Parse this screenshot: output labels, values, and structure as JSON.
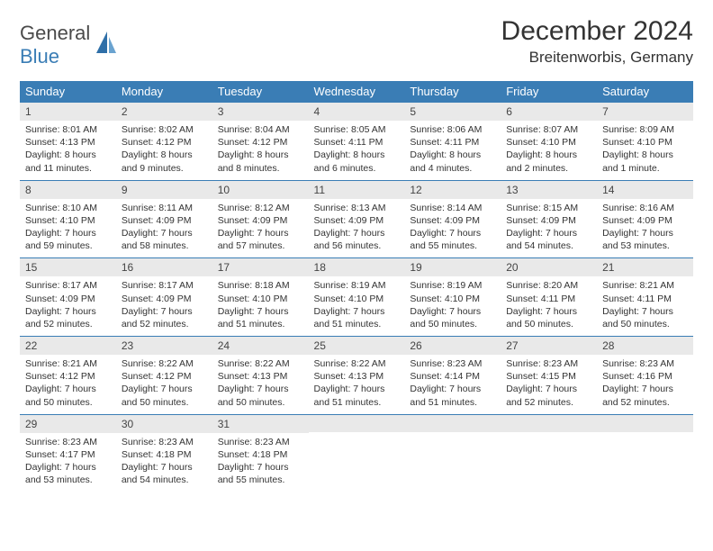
{
  "logo": {
    "part1": "General",
    "part2": "Blue"
  },
  "title": "December 2024",
  "location": "Breitenworbis, Germany",
  "colors": {
    "header_bg": "#3a7db5",
    "daynum_bg": "#e9e9e9",
    "text": "#333333",
    "logo_gray": "#4a4a4a",
    "logo_blue": "#3a7db5"
  },
  "weekdays": [
    "Sunday",
    "Monday",
    "Tuesday",
    "Wednesday",
    "Thursday",
    "Friday",
    "Saturday"
  ],
  "days": [
    {
      "n": "1",
      "sr": "Sunrise: 8:01 AM",
      "ss": "Sunset: 4:13 PM",
      "dl1": "Daylight: 8 hours",
      "dl2": "and 11 minutes."
    },
    {
      "n": "2",
      "sr": "Sunrise: 8:02 AM",
      "ss": "Sunset: 4:12 PM",
      "dl1": "Daylight: 8 hours",
      "dl2": "and 9 minutes."
    },
    {
      "n": "3",
      "sr": "Sunrise: 8:04 AM",
      "ss": "Sunset: 4:12 PM",
      "dl1": "Daylight: 8 hours",
      "dl2": "and 8 minutes."
    },
    {
      "n": "4",
      "sr": "Sunrise: 8:05 AM",
      "ss": "Sunset: 4:11 PM",
      "dl1": "Daylight: 8 hours",
      "dl2": "and 6 minutes."
    },
    {
      "n": "5",
      "sr": "Sunrise: 8:06 AM",
      "ss": "Sunset: 4:11 PM",
      "dl1": "Daylight: 8 hours",
      "dl2": "and 4 minutes."
    },
    {
      "n": "6",
      "sr": "Sunrise: 8:07 AM",
      "ss": "Sunset: 4:10 PM",
      "dl1": "Daylight: 8 hours",
      "dl2": "and 2 minutes."
    },
    {
      "n": "7",
      "sr": "Sunrise: 8:09 AM",
      "ss": "Sunset: 4:10 PM",
      "dl1": "Daylight: 8 hours",
      "dl2": "and 1 minute."
    },
    {
      "n": "8",
      "sr": "Sunrise: 8:10 AM",
      "ss": "Sunset: 4:10 PM",
      "dl1": "Daylight: 7 hours",
      "dl2": "and 59 minutes."
    },
    {
      "n": "9",
      "sr": "Sunrise: 8:11 AM",
      "ss": "Sunset: 4:09 PM",
      "dl1": "Daylight: 7 hours",
      "dl2": "and 58 minutes."
    },
    {
      "n": "10",
      "sr": "Sunrise: 8:12 AM",
      "ss": "Sunset: 4:09 PM",
      "dl1": "Daylight: 7 hours",
      "dl2": "and 57 minutes."
    },
    {
      "n": "11",
      "sr": "Sunrise: 8:13 AM",
      "ss": "Sunset: 4:09 PM",
      "dl1": "Daylight: 7 hours",
      "dl2": "and 56 minutes."
    },
    {
      "n": "12",
      "sr": "Sunrise: 8:14 AM",
      "ss": "Sunset: 4:09 PM",
      "dl1": "Daylight: 7 hours",
      "dl2": "and 55 minutes."
    },
    {
      "n": "13",
      "sr": "Sunrise: 8:15 AM",
      "ss": "Sunset: 4:09 PM",
      "dl1": "Daylight: 7 hours",
      "dl2": "and 54 minutes."
    },
    {
      "n": "14",
      "sr": "Sunrise: 8:16 AM",
      "ss": "Sunset: 4:09 PM",
      "dl1": "Daylight: 7 hours",
      "dl2": "and 53 minutes."
    },
    {
      "n": "15",
      "sr": "Sunrise: 8:17 AM",
      "ss": "Sunset: 4:09 PM",
      "dl1": "Daylight: 7 hours",
      "dl2": "and 52 minutes."
    },
    {
      "n": "16",
      "sr": "Sunrise: 8:17 AM",
      "ss": "Sunset: 4:09 PM",
      "dl1": "Daylight: 7 hours",
      "dl2": "and 52 minutes."
    },
    {
      "n": "17",
      "sr": "Sunrise: 8:18 AM",
      "ss": "Sunset: 4:10 PM",
      "dl1": "Daylight: 7 hours",
      "dl2": "and 51 minutes."
    },
    {
      "n": "18",
      "sr": "Sunrise: 8:19 AM",
      "ss": "Sunset: 4:10 PM",
      "dl1": "Daylight: 7 hours",
      "dl2": "and 51 minutes."
    },
    {
      "n": "19",
      "sr": "Sunrise: 8:19 AM",
      "ss": "Sunset: 4:10 PM",
      "dl1": "Daylight: 7 hours",
      "dl2": "and 50 minutes."
    },
    {
      "n": "20",
      "sr": "Sunrise: 8:20 AM",
      "ss": "Sunset: 4:11 PM",
      "dl1": "Daylight: 7 hours",
      "dl2": "and 50 minutes."
    },
    {
      "n": "21",
      "sr": "Sunrise: 8:21 AM",
      "ss": "Sunset: 4:11 PM",
      "dl1": "Daylight: 7 hours",
      "dl2": "and 50 minutes."
    },
    {
      "n": "22",
      "sr": "Sunrise: 8:21 AM",
      "ss": "Sunset: 4:12 PM",
      "dl1": "Daylight: 7 hours",
      "dl2": "and 50 minutes."
    },
    {
      "n": "23",
      "sr": "Sunrise: 8:22 AM",
      "ss": "Sunset: 4:12 PM",
      "dl1": "Daylight: 7 hours",
      "dl2": "and 50 minutes."
    },
    {
      "n": "24",
      "sr": "Sunrise: 8:22 AM",
      "ss": "Sunset: 4:13 PM",
      "dl1": "Daylight: 7 hours",
      "dl2": "and 50 minutes."
    },
    {
      "n": "25",
      "sr": "Sunrise: 8:22 AM",
      "ss": "Sunset: 4:13 PM",
      "dl1": "Daylight: 7 hours",
      "dl2": "and 51 minutes."
    },
    {
      "n": "26",
      "sr": "Sunrise: 8:23 AM",
      "ss": "Sunset: 4:14 PM",
      "dl1": "Daylight: 7 hours",
      "dl2": "and 51 minutes."
    },
    {
      "n": "27",
      "sr": "Sunrise: 8:23 AM",
      "ss": "Sunset: 4:15 PM",
      "dl1": "Daylight: 7 hours",
      "dl2": "and 52 minutes."
    },
    {
      "n": "28",
      "sr": "Sunrise: 8:23 AM",
      "ss": "Sunset: 4:16 PM",
      "dl1": "Daylight: 7 hours",
      "dl2": "and 52 minutes."
    },
    {
      "n": "29",
      "sr": "Sunrise: 8:23 AM",
      "ss": "Sunset: 4:17 PM",
      "dl1": "Daylight: 7 hours",
      "dl2": "and 53 minutes."
    },
    {
      "n": "30",
      "sr": "Sunrise: 8:23 AM",
      "ss": "Sunset: 4:18 PM",
      "dl1": "Daylight: 7 hours",
      "dl2": "and 54 minutes."
    },
    {
      "n": "31",
      "sr": "Sunrise: 8:23 AM",
      "ss": "Sunset: 4:18 PM",
      "dl1": "Daylight: 7 hours",
      "dl2": "and 55 minutes."
    }
  ]
}
